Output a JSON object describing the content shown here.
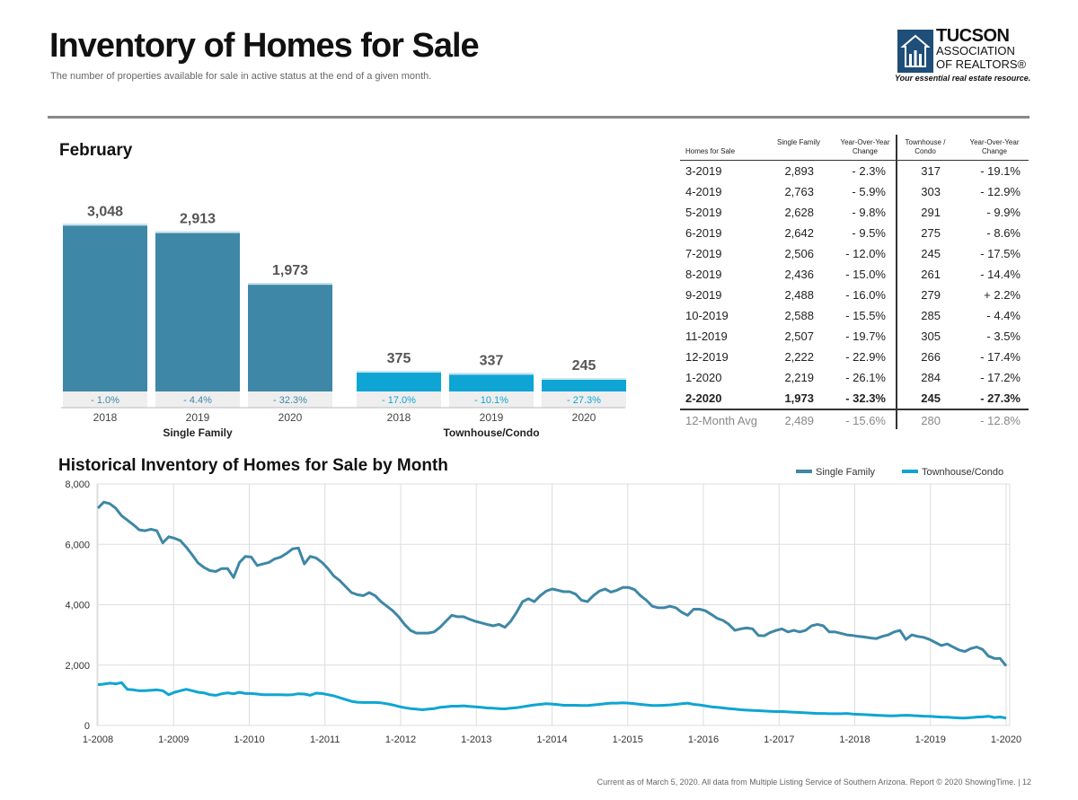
{
  "header": {
    "title": "Inventory of Homes for Sale",
    "subtitle": "The number of properties available for sale in active status at the end of a given month."
  },
  "logo": {
    "line1": "TUCSON",
    "line2": "ASSOCIATION",
    "line3": "OF REALTORS®",
    "tagline": "Your essential real estate resource."
  },
  "colors": {
    "single_family": "#3e87a6",
    "townhouse": "#0ea5d4",
    "grid": "#d9d9d9"
  },
  "table": {
    "headers": [
      "Homes for Sale",
      "Single Family",
      "Year-Over-Year Change",
      "Townhouse / Condo",
      "Year-Over-Year Change"
    ],
    "rows": [
      [
        "3-2019",
        "2,893",
        "- 2.3%",
        "317",
        "- 19.1%"
      ],
      [
        "4-2019",
        "2,763",
        "- 5.9%",
        "303",
        "- 12.9%"
      ],
      [
        "5-2019",
        "2,628",
        "- 9.8%",
        "291",
        "- 9.9%"
      ],
      [
        "6-2019",
        "2,642",
        "- 9.5%",
        "275",
        "- 8.6%"
      ],
      [
        "7-2019",
        "2,506",
        "- 12.0%",
        "245",
        "- 17.5%"
      ],
      [
        "8-2019",
        "2,436",
        "- 15.0%",
        "261",
        "- 14.4%"
      ],
      [
        "9-2019",
        "2,488",
        "- 16.0%",
        "279",
        "+ 2.2%"
      ],
      [
        "10-2019",
        "2,588",
        "- 15.5%",
        "285",
        "- 4.4%"
      ],
      [
        "11-2019",
        "2,507",
        "- 19.7%",
        "305",
        "- 3.5%"
      ],
      [
        "12-2019",
        "2,222",
        "- 22.9%",
        "266",
        "- 17.4%"
      ],
      [
        "1-2020",
        "2,219",
        "- 26.1%",
        "284",
        "- 17.2%"
      ]
    ],
    "current": [
      "2-2020",
      "1,973",
      "- 32.3%",
      "245",
      "- 27.3%"
    ],
    "average": [
      "12-Month Avg",
      "2,489",
      "- 15.6%",
      "280",
      "- 12.8%"
    ]
  },
  "footer": "Current as of March 5, 2020. All data from Multiple Listing Service of Southern Arizona. Report © 2020 ShowingTime. | 12",
  "chart_data": [
    {
      "type": "bar",
      "title": "February",
      "groups": [
        {
          "name": "Single Family",
          "color": "#3e87a6",
          "categories": [
            "2018",
            "2019",
            "2020"
          ],
          "values": [
            3048,
            2913,
            1973
          ],
          "value_labels": [
            "3,048",
            "2,913",
            "1,973"
          ],
          "changes": [
            "- 1.0%",
            "- 4.4%",
            "- 32.3%"
          ]
        },
        {
          "name": "Townhouse/Condo",
          "color": "#0ea5d4",
          "categories": [
            "2018",
            "2019",
            "2020"
          ],
          "values": [
            375,
            337,
            245
          ],
          "value_labels": [
            "375",
            "337",
            "245"
          ],
          "changes": [
            "- 17.0%",
            "- 10.1%",
            "- 27.3%"
          ]
        }
      ],
      "ylim": [
        0,
        3200
      ]
    },
    {
      "type": "line",
      "title": "Historical Inventory of Homes for Sale by Month",
      "x_ticks": [
        "1-2008",
        "1-2009",
        "1-2010",
        "1-2011",
        "1-2012",
        "1-2013",
        "1-2014",
        "1-2015",
        "1-2016",
        "1-2017",
        "1-2018",
        "1-2019",
        "1-2020"
      ],
      "y_ticks": [
        "0",
        "2,000",
        "4,000",
        "6,000",
        "8,000"
      ],
      "ylim": [
        0,
        8000
      ],
      "x_start": "1-2008",
      "legend_position": "top-right",
      "series": [
        {
          "name": "Single Family",
          "color": "#3e87a6",
          "values": [
            7200,
            7400,
            7350,
            7200,
            6950,
            6800,
            6650,
            6480,
            6450,
            6500,
            6450,
            6050,
            6250,
            6200,
            6120,
            5900,
            5650,
            5380,
            5230,
            5130,
            5100,
            5200,
            5200,
            4900,
            5400,
            5600,
            5580,
            5300,
            5350,
            5400,
            5520,
            5580,
            5700,
            5850,
            5880,
            5350,
            5600,
            5550,
            5400,
            5200,
            4950,
            4800,
            4600,
            4400,
            4330,
            4300,
            4400,
            4300,
            4100,
            3950,
            3800,
            3600,
            3350,
            3150,
            3060,
            3060,
            3060,
            3100,
            3250,
            3450,
            3650,
            3600,
            3600,
            3520,
            3450,
            3400,
            3350,
            3300,
            3350,
            3250,
            3450,
            3750,
            4100,
            4200,
            4100,
            4300,
            4450,
            4520,
            4480,
            4430,
            4430,
            4350,
            4150,
            4100,
            4300,
            4450,
            4520,
            4420,
            4480,
            4570,
            4570,
            4500,
            4300,
            4150,
            3950,
            3900,
            3900,
            3950,
            3900,
            3750,
            3650,
            3850,
            3850,
            3800,
            3680,
            3550,
            3480,
            3350,
            3150,
            3200,
            3230,
            3200,
            2980,
            2970,
            3080,
            3150,
            3200,
            3100,
            3150,
            3100,
            3150,
            3300,
            3350,
            3300,
            3100,
            3100,
            3050,
            3000,
            2980,
            2950,
            2930,
            2900,
            2880,
            2950,
            3000,
            3100,
            3150,
            2850,
            3000,
            2950,
            2920,
            2850,
            2750,
            2650,
            2700,
            2600,
            2500,
            2450,
            2550,
            2600,
            2520,
            2300,
            2222,
            2219,
            1973
          ]
        },
        {
          "name": "Townhouse/Condo",
          "color": "#0ea5d4",
          "values": [
            1350,
            1370,
            1400,
            1380,
            1420,
            1200,
            1180,
            1150,
            1150,
            1170,
            1180,
            1150,
            1020,
            1100,
            1150,
            1200,
            1150,
            1100,
            1080,
            1020,
            1000,
            1050,
            1080,
            1050,
            1100,
            1060,
            1060,
            1040,
            1020,
            1020,
            1020,
            1020,
            1010,
            1020,
            1050,
            1040,
            1000,
            1070,
            1060,
            1020,
            980,
            920,
            860,
            800,
            770,
            760,
            760,
            760,
            750,
            720,
            680,
            630,
            590,
            560,
            540,
            520,
            540,
            560,
            600,
            620,
            640,
            640,
            650,
            630,
            620,
            600,
            580,
            570,
            560,
            550,
            570,
            590,
            620,
            650,
            680,
            700,
            720,
            710,
            690,
            670,
            670,
            670,
            660,
            660,
            680,
            700,
            720,
            740,
            740,
            750,
            740,
            720,
            700,
            680,
            660,
            660,
            670,
            680,
            700,
            720,
            740,
            700,
            680,
            650,
            620,
            600,
            580,
            560,
            540,
            520,
            510,
            500,
            490,
            480,
            470,
            460,
            460,
            450,
            440,
            430,
            420,
            410,
            400,
            400,
            390,
            390,
            390,
            400,
            380,
            370,
            360,
            350,
            340,
            330,
            320,
            317,
            330,
            340,
            330,
            320,
            310,
            303,
            291,
            280,
            275,
            260,
            250,
            245,
            261,
            279,
            285,
            305,
            266,
            284,
            245
          ]
        }
      ]
    }
  ]
}
